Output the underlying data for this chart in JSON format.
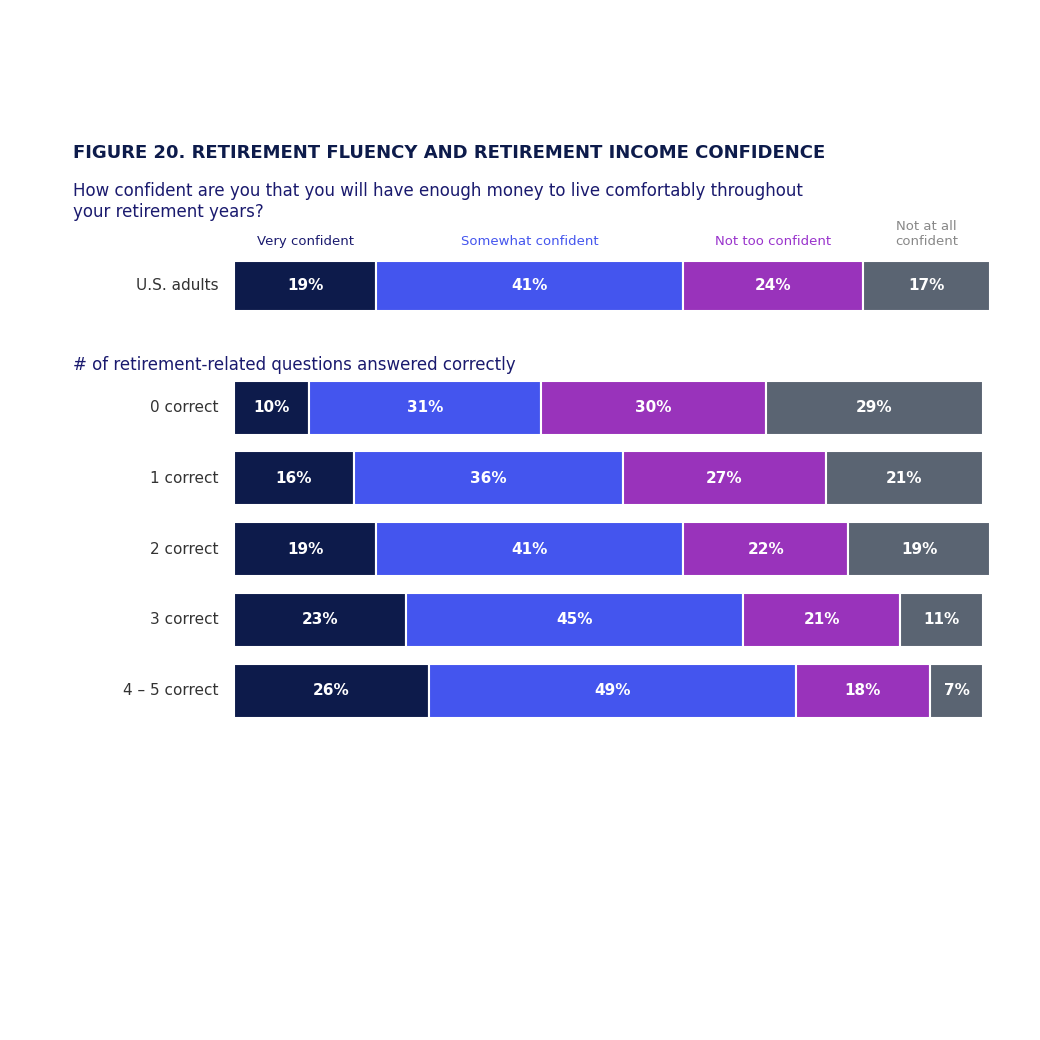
{
  "title": "FIGURE 20. RETIREMENT FLUENCY AND RETIREMENT INCOME CONFIDENCE",
  "question": "How confident are you that you will have enough money to live comfortably throughout\nyour retirement years?",
  "section2_label": "# of retirement-related questions answered correctly",
  "col_labels": [
    "Very confident",
    "Somewhat confident",
    "Not too confident",
    "Not at all\nconfident"
  ],
  "col_label_colors": [
    "#1a1a6e",
    "#4455ee",
    "#9933cc",
    "#888888"
  ],
  "colors": [
    "#0d1b4b",
    "#4455ee",
    "#9933bb",
    "#5a6472"
  ],
  "rows": [
    {
      "label": "U.S. adults",
      "values": [
        19,
        41,
        24,
        17
      ]
    },
    {
      "label": "0 correct",
      "values": [
        10,
        31,
        30,
        29
      ]
    },
    {
      "label": "1 correct",
      "values": [
        16,
        36,
        27,
        21
      ]
    },
    {
      "label": "2 correct",
      "values": [
        19,
        41,
        22,
        19
      ]
    },
    {
      "label": "3 correct",
      "values": [
        23,
        45,
        21,
        11
      ]
    },
    {
      "label": "4 – 5 correct",
      "values": [
        26,
        49,
        18,
        7
      ]
    }
  ],
  "top_band_color": "#1a7ad4",
  "bottom_band_color": "#1a7ad4",
  "background_color": "#ffffff",
  "title_color": "#0d1b4b",
  "question_color": "#1a1a6e",
  "section2_color": "#1a1a6e",
  "bar_text_color": "#ffffff",
  "row_label_color": "#333333"
}
